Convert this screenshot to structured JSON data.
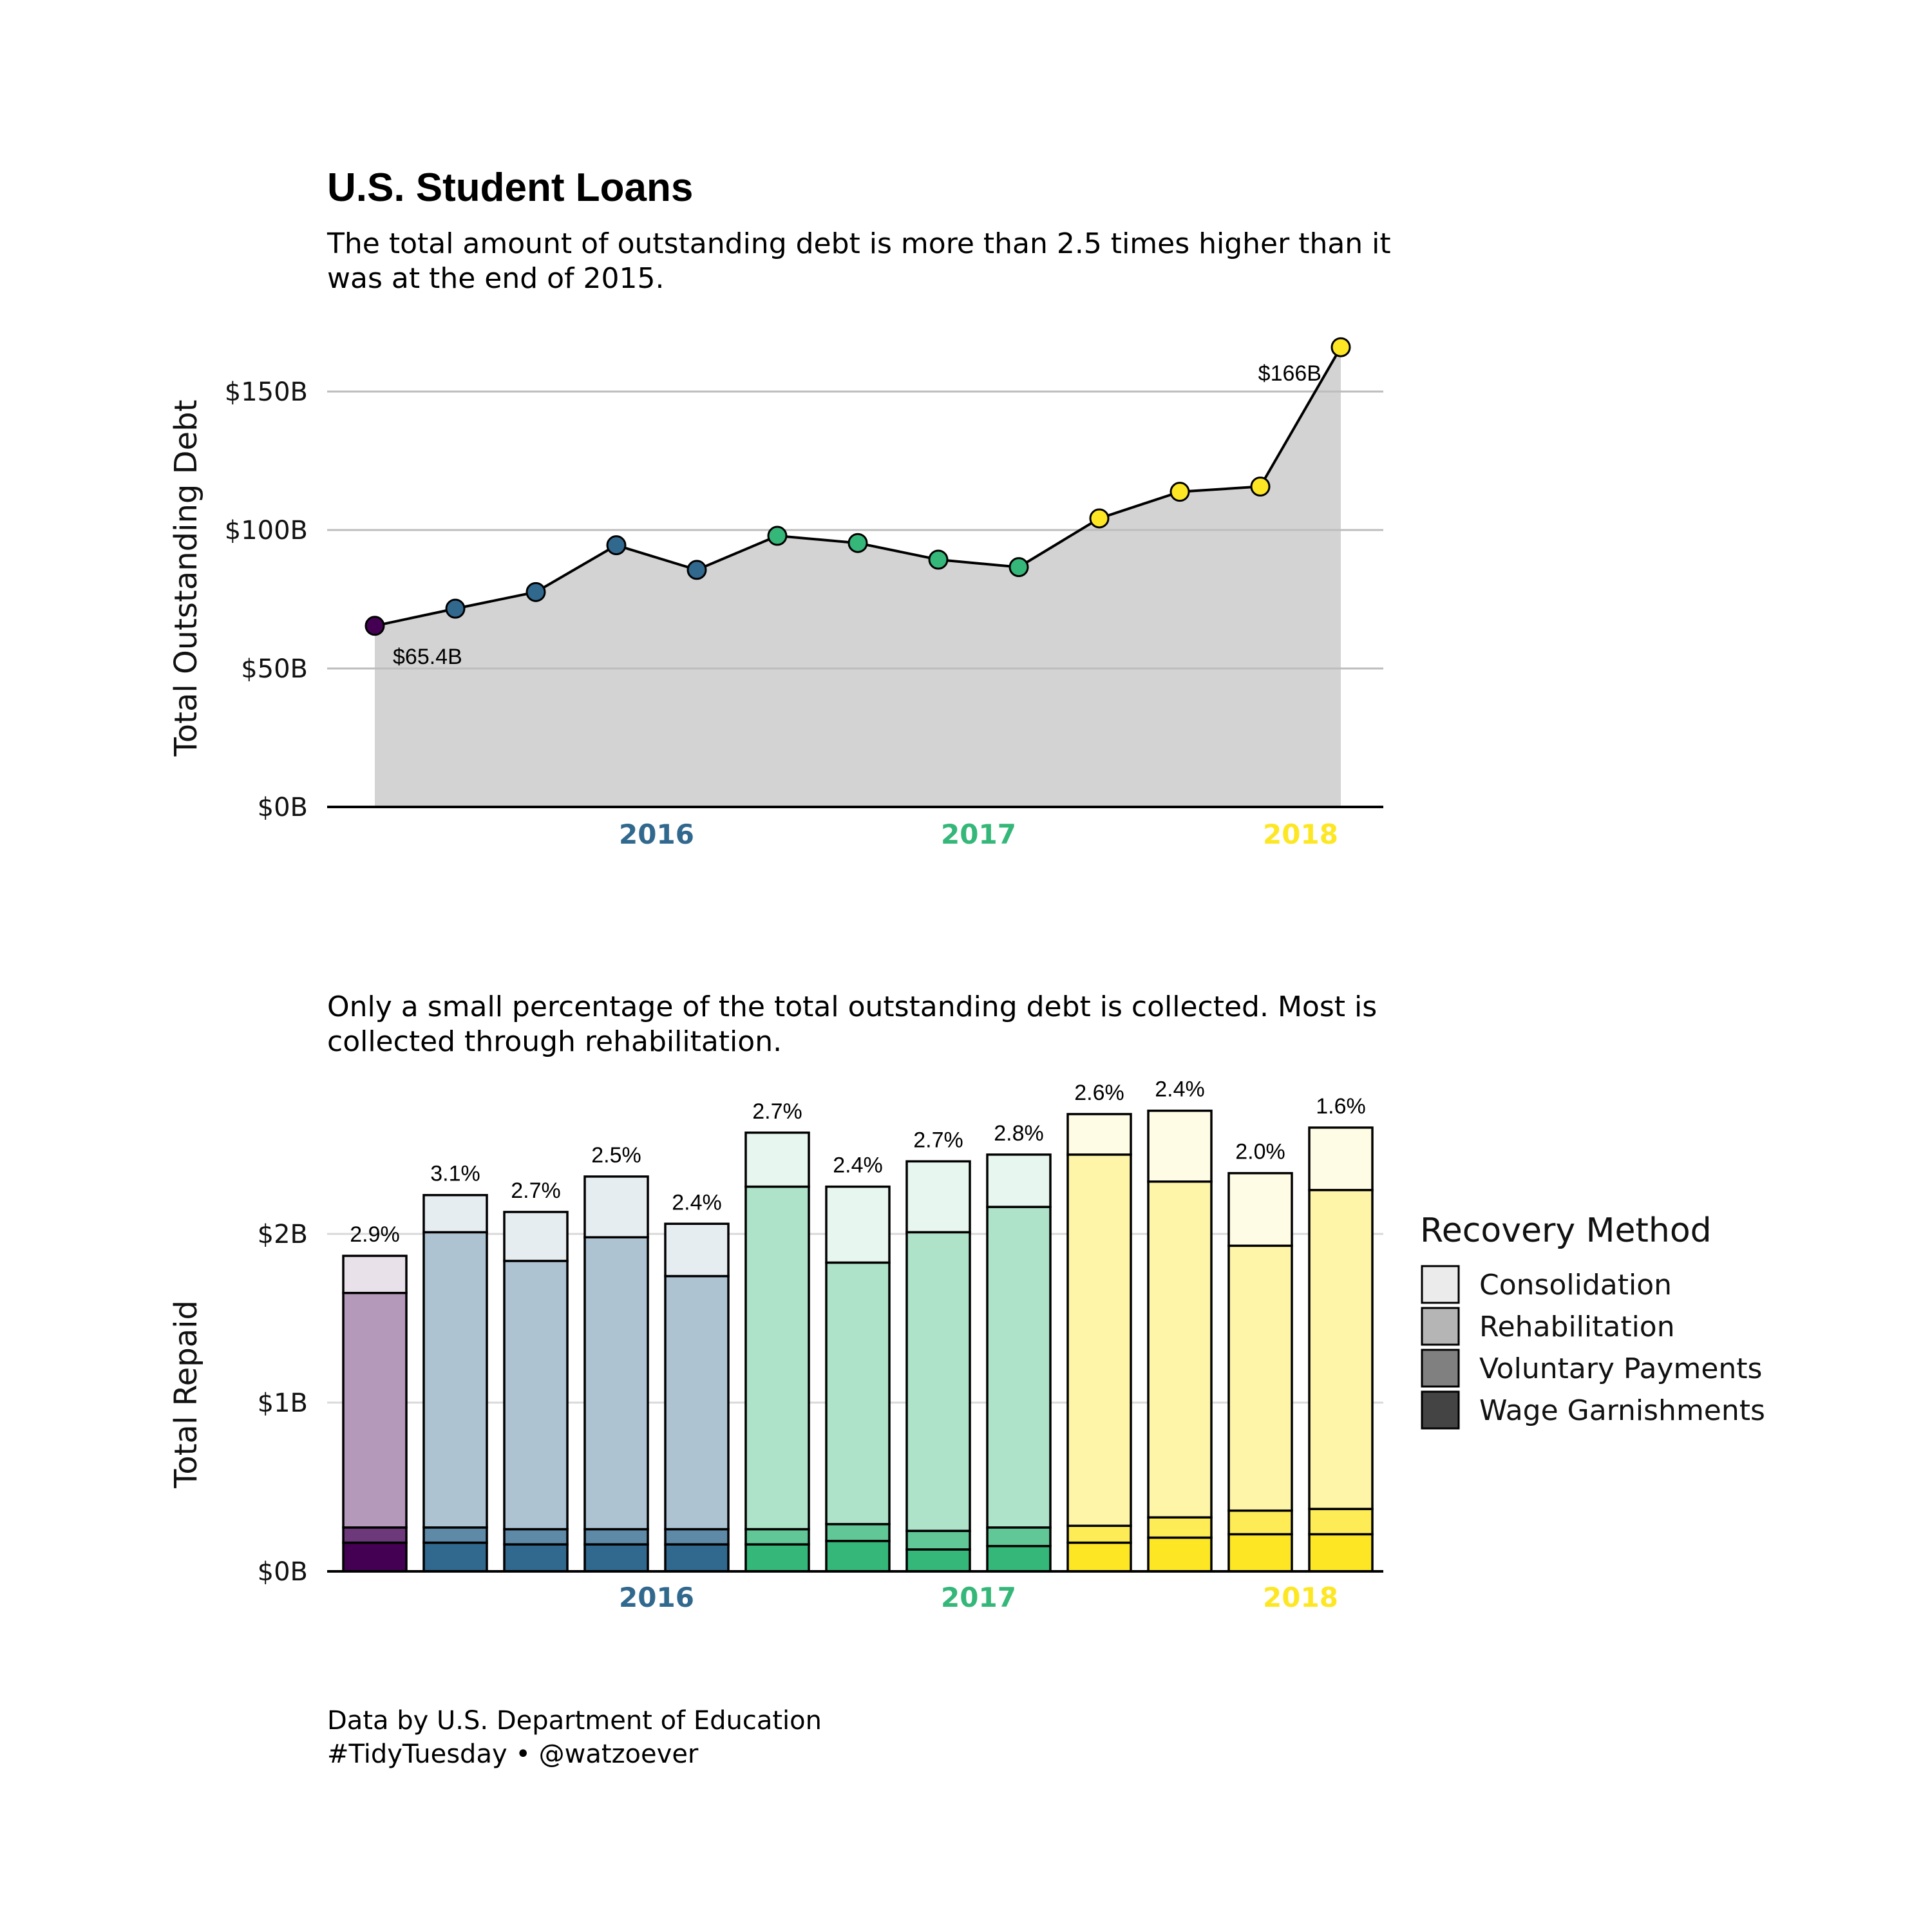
{
  "title": "U.S. Student Loans",
  "subtitle_top": "The total amount of outstanding debt is more than 2.5 times higher than it was at the end of 2015.",
  "subtitle_bottom": "Only a small percentage of the total outstanding debt is collected. Most is collected through rehabilitation.",
  "caption_line1": "Data by U.S. Department of Education",
  "caption_line2": "#TidyTuesday • @watzoever",
  "colors": {
    "2015": "#440154",
    "2016": "#31688e",
    "2017": "#35b779",
    "2018": "#fde725",
    "area": "#d3d3d3",
    "grid": "#cccccc"
  },
  "chart_data": [
    {
      "type": "area",
      "ylabel": "Total Outstanding Debt",
      "ylim": [
        0,
        170
      ],
      "y_ticks": [
        {
          "value": 0,
          "label": "$0B"
        },
        {
          "value": 50,
          "label": "$50B"
        },
        {
          "value": 100,
          "label": "$100B"
        },
        {
          "value": 150,
          "label": "$150B"
        }
      ],
      "year_labels": [
        {
          "label": "2016",
          "year": "2016",
          "at": 3.5
        },
        {
          "label": "2017",
          "year": "2017",
          "at": 7.5
        },
        {
          "label": "2018",
          "year": "2018",
          "at": 11.5
        }
      ],
      "grid": true,
      "points": [
        {
          "year": "2015",
          "value": 65.4
        },
        {
          "year": "2016",
          "value": 71.6
        },
        {
          "year": "2016",
          "value": 77.6
        },
        {
          "year": "2016",
          "value": 94.5
        },
        {
          "year": "2016",
          "value": 85.6
        },
        {
          "year": "2017",
          "value": 97.9
        },
        {
          "year": "2017",
          "value": 95.3
        },
        {
          "year": "2017",
          "value": 89.3
        },
        {
          "year": "2017",
          "value": 86.6
        },
        {
          "year": "2018",
          "value": 104.2
        },
        {
          "year": "2018",
          "value": 113.8
        },
        {
          "year": "2018",
          "value": 115.7
        },
        {
          "year": "2018",
          "value": 166.0
        }
      ],
      "annotations": [
        {
          "index": 0,
          "text": "$65.4B"
        },
        {
          "index": 12,
          "text": "$166B"
        }
      ]
    },
    {
      "type": "bar",
      "stacked": true,
      "ylabel": "Total Repaid",
      "ylim": [
        0,
        2.8
      ],
      "y_ticks": [
        {
          "value": 0,
          "label": "$0B"
        },
        {
          "value": 1,
          "label": "$1B"
        },
        {
          "value": 2,
          "label": "$2B"
        }
      ],
      "year_labels": [
        {
          "label": "2016",
          "year": "2016",
          "at": 3.5
        },
        {
          "label": "2017",
          "year": "2017",
          "at": 7.5
        },
        {
          "label": "2018",
          "year": "2018",
          "at": 11.5
        }
      ],
      "grid": true,
      "legend": {
        "title": "Recovery Method",
        "position": "right",
        "items": [
          {
            "label": "Consolidation",
            "shade": "#ebebeb"
          },
          {
            "label": "Rehabilitation",
            "shade": "#b5b5b5"
          },
          {
            "label": "Voluntary Payments",
            "shade": "#808080"
          },
          {
            "label": "Wage Garnishments",
            "shade": "#444444"
          }
        ]
      },
      "series_order": [
        "Wage Garnishments",
        "Voluntary Payments",
        "Rehabilitation",
        "Consolidation"
      ],
      "bars": [
        {
          "year": "2015",
          "pct": "2.9%",
          "wage": 0.17,
          "voluntary": 0.09,
          "rehab": 1.39,
          "consolidation": 0.22
        },
        {
          "year": "2016",
          "pct": "3.1%",
          "wage": 0.17,
          "voluntary": 0.09,
          "rehab": 1.75,
          "consolidation": 0.22
        },
        {
          "year": "2016",
          "pct": "2.7%",
          "wage": 0.16,
          "voluntary": 0.09,
          "rehab": 1.59,
          "consolidation": 0.29
        },
        {
          "year": "2016",
          "pct": "2.5%",
          "wage": 0.16,
          "voluntary": 0.09,
          "rehab": 1.73,
          "consolidation": 0.36
        },
        {
          "year": "2016",
          "pct": "2.4%",
          "wage": 0.16,
          "voluntary": 0.09,
          "rehab": 1.5,
          "consolidation": 0.31
        },
        {
          "year": "2017",
          "pct": "2.7%",
          "wage": 0.16,
          "voluntary": 0.09,
          "rehab": 2.03,
          "consolidation": 0.32
        },
        {
          "year": "2017",
          "pct": "2.4%",
          "wage": 0.18,
          "voluntary": 0.1,
          "rehab": 1.55,
          "consolidation": 0.45
        },
        {
          "year": "2017",
          "pct": "2.7%",
          "wage": 0.13,
          "voluntary": 0.11,
          "rehab": 1.77,
          "consolidation": 0.42
        },
        {
          "year": "2017",
          "pct": "2.8%",
          "wage": 0.15,
          "voluntary": 0.11,
          "rehab": 1.9,
          "consolidation": 0.31
        },
        {
          "year": "2018",
          "pct": "2.6%",
          "wage": 0.17,
          "voluntary": 0.1,
          "rehab": 2.2,
          "consolidation": 0.24
        },
        {
          "year": "2018",
          "pct": "2.4%",
          "wage": 0.2,
          "voluntary": 0.12,
          "rehab": 1.99,
          "consolidation": 0.42
        },
        {
          "year": "2018",
          "pct": "2.0%",
          "wage": 0.22,
          "voluntary": 0.14,
          "rehab": 1.57,
          "consolidation": 0.43
        },
        {
          "year": "2018",
          "pct": "1.6%",
          "wage": 0.22,
          "voluntary": 0.15,
          "rehab": 1.89,
          "consolidation": 0.37
        }
      ]
    }
  ]
}
